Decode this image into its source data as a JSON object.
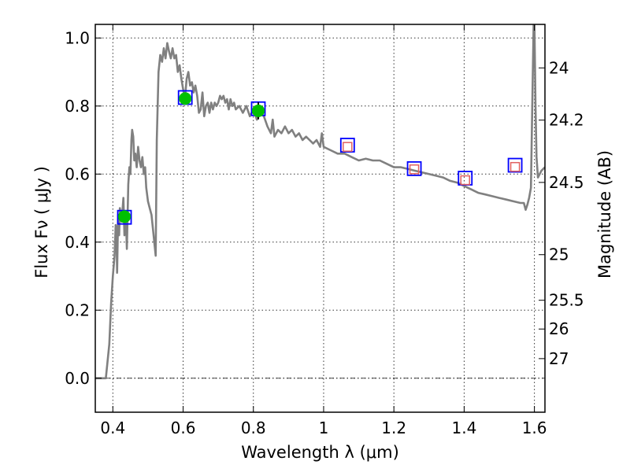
{
  "chart_data": {
    "type": "scatter",
    "title": "",
    "xlabel": "Wavelength  λ (μm)",
    "ylabel": "Flux  Fν ( μJy )",
    "y2label": "Magnitude (AB)",
    "xlim": [
      0.35,
      1.63
    ],
    "ylim": [
      -0.1,
      1.04
    ],
    "grid": true,
    "colors": {
      "model": "#808080",
      "detection": "#00c000",
      "box": "#0000ff",
      "model_flux": "#e06060",
      "frame": "#000000",
      "zero_line": "#000000"
    },
    "x_ticks": [
      {
        "value": 0.4,
        "label": "0.4"
      },
      {
        "value": 0.6,
        "label": "0.6"
      },
      {
        "value": 0.8,
        "label": "0.8"
      },
      {
        "value": 1.0,
        "label": "1"
      },
      {
        "value": 1.2,
        "label": "1.2"
      },
      {
        "value": 1.4,
        "label": "1.4"
      },
      {
        "value": 1.6,
        "label": "1.6"
      }
    ],
    "y_ticks": [
      {
        "value": 0.0,
        "label": "0.0"
      },
      {
        "value": 0.2,
        "label": "0.2"
      },
      {
        "value": 0.4,
        "label": "0.4"
      },
      {
        "value": 0.6,
        "label": "0.6"
      },
      {
        "value": 0.8,
        "label": "0.8"
      },
      {
        "value": 1.0,
        "label": "1.0"
      }
    ],
    "mag_ticks": [
      {
        "value": 24.0,
        "label": "24"
      },
      {
        "value": 24.2,
        "label": "24.2"
      },
      {
        "value": 24.5,
        "label": "24.5"
      },
      {
        "value": 25.0,
        "label": "25"
      },
      {
        "value": 25.5,
        "label": "25.5"
      },
      {
        "value": 26.0,
        "label": "26"
      },
      {
        "value": 27.0,
        "label": "27"
      }
    ],
    "detections": [
      {
        "x": 0.433,
        "y": 0.475,
        "err": 0.018,
        "box": 0.473
      },
      {
        "x": 0.606,
        "y": 0.822,
        "err": 0.012,
        "box": 0.825
      },
      {
        "x": 0.814,
        "y": 0.786,
        "err": 0.025,
        "box": 0.792
      }
    ],
    "model_points": [
      {
        "x": 1.068,
        "y": 0.68,
        "box": 0.685
      },
      {
        "x": 1.258,
        "y": 0.614,
        "box": 0.616
      },
      {
        "x": 1.403,
        "y": 0.582,
        "box": 0.588
      },
      {
        "x": 1.545,
        "y": 0.621,
        "box": 0.626
      }
    ],
    "spectrum": [
      [
        0.35,
        0.0
      ],
      [
        0.38,
        0.0
      ],
      [
        0.385,
        0.05
      ],
      [
        0.39,
        0.1
      ],
      [
        0.395,
        0.22
      ],
      [
        0.4,
        0.3
      ],
      [
        0.405,
        0.36
      ],
      [
        0.408,
        0.45
      ],
      [
        0.41,
        0.44
      ],
      [
        0.412,
        0.31
      ],
      [
        0.415,
        0.48
      ],
      [
        0.418,
        0.42
      ],
      [
        0.42,
        0.5
      ],
      [
        0.425,
        0.46
      ],
      [
        0.43,
        0.53
      ],
      [
        0.433,
        0.42
      ],
      [
        0.437,
        0.48
      ],
      [
        0.44,
        0.38
      ],
      [
        0.444,
        0.57
      ],
      [
        0.447,
        0.62
      ],
      [
        0.45,
        0.6
      ],
      [
        0.453,
        0.7
      ],
      [
        0.455,
        0.73
      ],
      [
        0.458,
        0.71
      ],
      [
        0.461,
        0.64
      ],
      [
        0.464,
        0.66
      ],
      [
        0.468,
        0.62
      ],
      [
        0.472,
        0.68
      ],
      [
        0.476,
        0.64
      ],
      [
        0.48,
        0.62
      ],
      [
        0.484,
        0.65
      ],
      [
        0.488,
        0.6
      ],
      [
        0.492,
        0.62
      ],
      [
        0.495,
        0.56
      ],
      [
        0.5,
        0.52
      ],
      [
        0.505,
        0.5
      ],
      [
        0.51,
        0.48
      ],
      [
        0.515,
        0.43
      ],
      [
        0.52,
        0.38
      ],
      [
        0.522,
        0.36
      ],
      [
        0.525,
        0.7
      ],
      [
        0.53,
        0.9
      ],
      [
        0.535,
        0.95
      ],
      [
        0.54,
        0.93
      ],
      [
        0.545,
        0.97
      ],
      [
        0.55,
        0.94
      ],
      [
        0.555,
        0.985
      ],
      [
        0.56,
        0.96
      ],
      [
        0.565,
        0.94
      ],
      [
        0.57,
        0.97
      ],
      [
        0.575,
        0.94
      ],
      [
        0.58,
        0.95
      ],
      [
        0.585,
        0.9
      ],
      [
        0.59,
        0.92
      ],
      [
        0.595,
        0.88
      ],
      [
        0.6,
        0.85
      ],
      [
        0.605,
        0.82
      ],
      [
        0.61,
        0.88
      ],
      [
        0.615,
        0.9
      ],
      [
        0.62,
        0.86
      ],
      [
        0.625,
        0.87
      ],
      [
        0.63,
        0.84
      ],
      [
        0.635,
        0.86
      ],
      [
        0.64,
        0.83
      ],
      [
        0.645,
        0.78
      ],
      [
        0.65,
        0.79
      ],
      [
        0.655,
        0.84
      ],
      [
        0.66,
        0.77
      ],
      [
        0.665,
        0.8
      ],
      [
        0.67,
        0.81
      ],
      [
        0.675,
        0.78
      ],
      [
        0.68,
        0.81
      ],
      [
        0.685,
        0.79
      ],
      [
        0.69,
        0.81
      ],
      [
        0.695,
        0.8
      ],
      [
        0.7,
        0.81
      ],
      [
        0.705,
        0.83
      ],
      [
        0.71,
        0.82
      ],
      [
        0.715,
        0.83
      ],
      [
        0.72,
        0.81
      ],
      [
        0.725,
        0.82
      ],
      [
        0.73,
        0.79
      ],
      [
        0.735,
        0.82
      ],
      [
        0.74,
        0.8
      ],
      [
        0.745,
        0.81
      ],
      [
        0.75,
        0.79
      ],
      [
        0.76,
        0.8
      ],
      [
        0.77,
        0.78
      ],
      [
        0.78,
        0.8
      ],
      [
        0.79,
        0.77
      ],
      [
        0.8,
        0.79
      ],
      [
        0.81,
        0.76
      ],
      [
        0.82,
        0.78
      ],
      [
        0.83,
        0.77
      ],
      [
        0.84,
        0.74
      ],
      [
        0.85,
        0.72
      ],
      [
        0.855,
        0.76
      ],
      [
        0.86,
        0.71
      ],
      [
        0.87,
        0.73
      ],
      [
        0.88,
        0.72
      ],
      [
        0.89,
        0.74
      ],
      [
        0.9,
        0.72
      ],
      [
        0.91,
        0.73
      ],
      [
        0.92,
        0.71
      ],
      [
        0.93,
        0.72
      ],
      [
        0.94,
        0.7
      ],
      [
        0.95,
        0.71
      ],
      [
        0.96,
        0.7
      ],
      [
        0.97,
        0.69
      ],
      [
        0.98,
        0.7
      ],
      [
        0.99,
        0.68
      ],
      [
        0.995,
        0.72
      ],
      [
        1.0,
        0.68
      ],
      [
        1.02,
        0.67
      ],
      [
        1.04,
        0.66
      ],
      [
        1.06,
        0.66
      ],
      [
        1.08,
        0.65
      ],
      [
        1.1,
        0.64
      ],
      [
        1.12,
        0.645
      ],
      [
        1.14,
        0.64
      ],
      [
        1.16,
        0.64
      ],
      [
        1.18,
        0.63
      ],
      [
        1.2,
        0.62
      ],
      [
        1.22,
        0.62
      ],
      [
        1.24,
        0.615
      ],
      [
        1.26,
        0.61
      ],
      [
        1.28,
        0.605
      ],
      [
        1.3,
        0.6
      ],
      [
        1.32,
        0.595
      ],
      [
        1.34,
        0.59
      ],
      [
        1.36,
        0.58
      ],
      [
        1.38,
        0.575
      ],
      [
        1.4,
        0.565
      ],
      [
        1.42,
        0.555
      ],
      [
        1.44,
        0.545
      ],
      [
        1.46,
        0.54
      ],
      [
        1.48,
        0.535
      ],
      [
        1.5,
        0.53
      ],
      [
        1.52,
        0.525
      ],
      [
        1.54,
        0.52
      ],
      [
        1.56,
        0.515
      ],
      [
        1.57,
        0.515
      ],
      [
        1.575,
        0.495
      ],
      [
        1.58,
        0.51
      ],
      [
        1.585,
        0.53
      ],
      [
        1.59,
        0.56
      ],
      [
        1.594,
        0.8
      ],
      [
        1.598,
        1.05
      ],
      [
        1.6,
        1.05
      ],
      [
        1.603,
        0.8
      ],
      [
        1.606,
        0.65
      ],
      [
        1.61,
        0.59
      ],
      [
        1.615,
        0.6
      ],
      [
        1.62,
        0.61
      ],
      [
        1.63,
        0.62
      ]
    ]
  }
}
